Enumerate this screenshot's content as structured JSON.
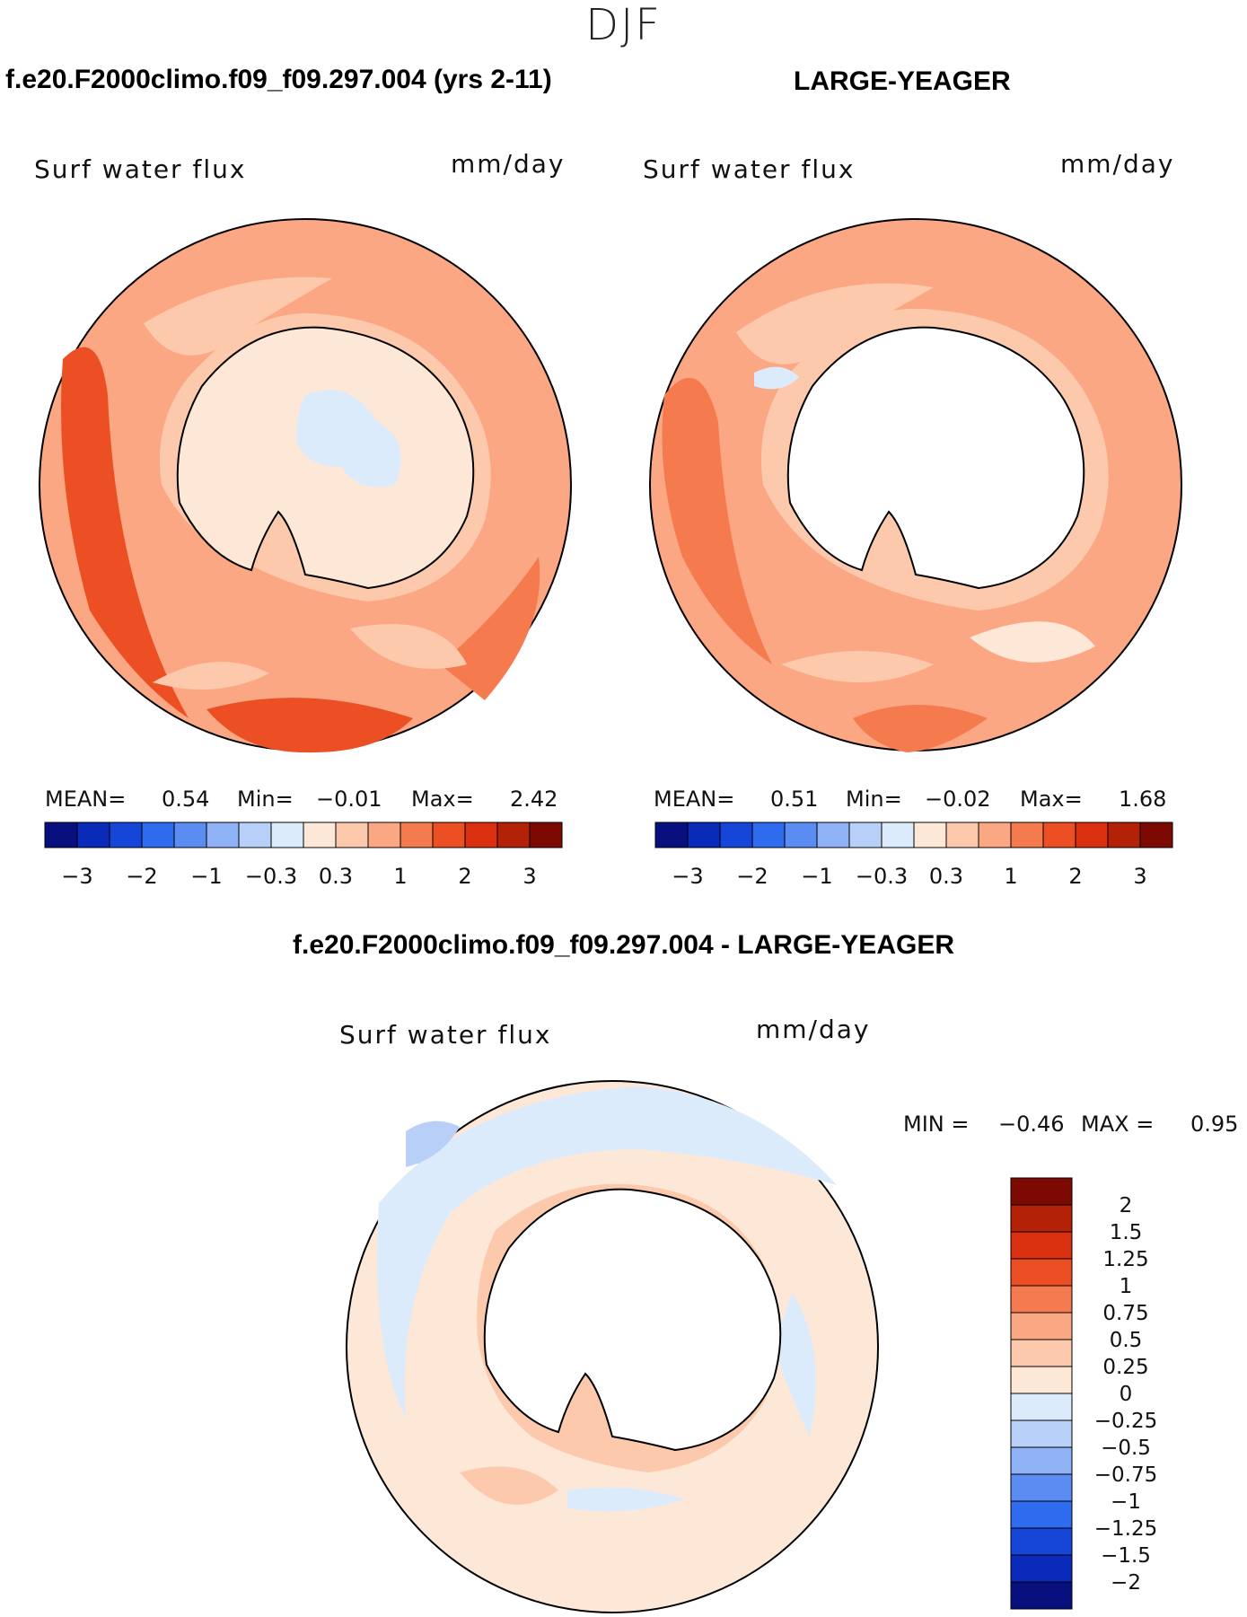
{
  "page": {
    "season": "DJF",
    "panel1_title": "f.e20.F2000climo.f09_f09.297.004 (yrs 2-11)",
    "panel2_title": "LARGE-YEAGER",
    "diff_title": "f.e20.F2000climo.f09_f09.297.004 - LARGE-YEAGER"
  },
  "panels": [
    {
      "variable": "Surf  water  flux",
      "units": "mm/day",
      "mean_label": "MEAN=",
      "mean_value": "0.54",
      "min_label": "Min=",
      "min_value": "−0.01",
      "max_label": "Max=",
      "max_value": "2.42"
    },
    {
      "variable": "Surf  water  flux",
      "units": "mm/day",
      "mean_label": "MEAN=",
      "mean_value": "0.51",
      "min_label": "Min=",
      "min_value": "−0.02",
      "max_label": "Max=",
      "max_value": "1.68"
    },
    {
      "variable": "Surf  water  flux",
      "units": "mm/day",
      "min_label": "MIN =",
      "min_value": "−0.46",
      "max_label": "MAX =",
      "max_value": "0.95"
    }
  ],
  "chart_data": [
    {
      "type": "heatmap",
      "title": "f.e20.F2000climo.f09_f09.297.004 (yrs 2-11)",
      "variable": "Surf water flux",
      "units": "mm/day",
      "projection": "south polar stereographic",
      "mean": 0.54,
      "min": -0.01,
      "max": 2.42,
      "colorbar": {
        "orientation": "horizontal",
        "tick_labels": [
          "−3",
          "−2",
          "−1",
          "−0.3",
          "0.3",
          "1",
          "2",
          "3"
        ],
        "colors": [
          "#08107f",
          "#0a2aba",
          "#1546d8",
          "#2f6bee",
          "#5a8cf2",
          "#8fb1f5",
          "#b8cff8",
          "#dcebfc",
          "#fde8d8",
          "#fdc9ad",
          "#fba784",
          "#f57a4e",
          "#ec4f24",
          "#da3010",
          "#b32107",
          "#7d0a02"
        ]
      }
    },
    {
      "type": "heatmap",
      "title": "LARGE-YEAGER",
      "variable": "Surf water flux",
      "units": "mm/day",
      "projection": "south polar stereographic",
      "mean": 0.51,
      "min": -0.02,
      "max": 1.68,
      "colorbar": {
        "orientation": "horizontal",
        "tick_labels": [
          "−3",
          "−2",
          "−1",
          "−0.3",
          "0.3",
          "1",
          "2",
          "3"
        ],
        "colors": [
          "#08107f",
          "#0a2aba",
          "#1546d8",
          "#2f6bee",
          "#5a8cf2",
          "#8fb1f5",
          "#b8cff8",
          "#dcebfc",
          "#fde8d8",
          "#fdc9ad",
          "#fba784",
          "#f57a4e",
          "#ec4f24",
          "#da3010",
          "#b32107",
          "#7d0a02"
        ]
      }
    },
    {
      "type": "heatmap",
      "title": "f.e20.F2000climo.f09_f09.297.004 - LARGE-YEAGER",
      "variable": "Surf water flux",
      "units": "mm/day",
      "projection": "south polar stereographic",
      "min": -0.46,
      "max": 0.95,
      "colorbar": {
        "orientation": "vertical",
        "tick_labels": [
          "2",
          "1.5",
          "1.25",
          "1",
          "0.75",
          "0.5",
          "0.25",
          "0",
          "−0.25",
          "−0.5",
          "−0.75",
          "−1",
          "−1.25",
          "−1.5",
          "−2"
        ],
        "colors": [
          "#7d0a02",
          "#b32107",
          "#da3010",
          "#ec4f24",
          "#f57a4e",
          "#fba784",
          "#fdc9ad",
          "#fde8d8",
          "#dcebfc",
          "#b8cff8",
          "#8fb1f5",
          "#5a8cf2",
          "#2f6bee",
          "#1546d8",
          "#0a2aba",
          "#08107f"
        ]
      }
    }
  ]
}
